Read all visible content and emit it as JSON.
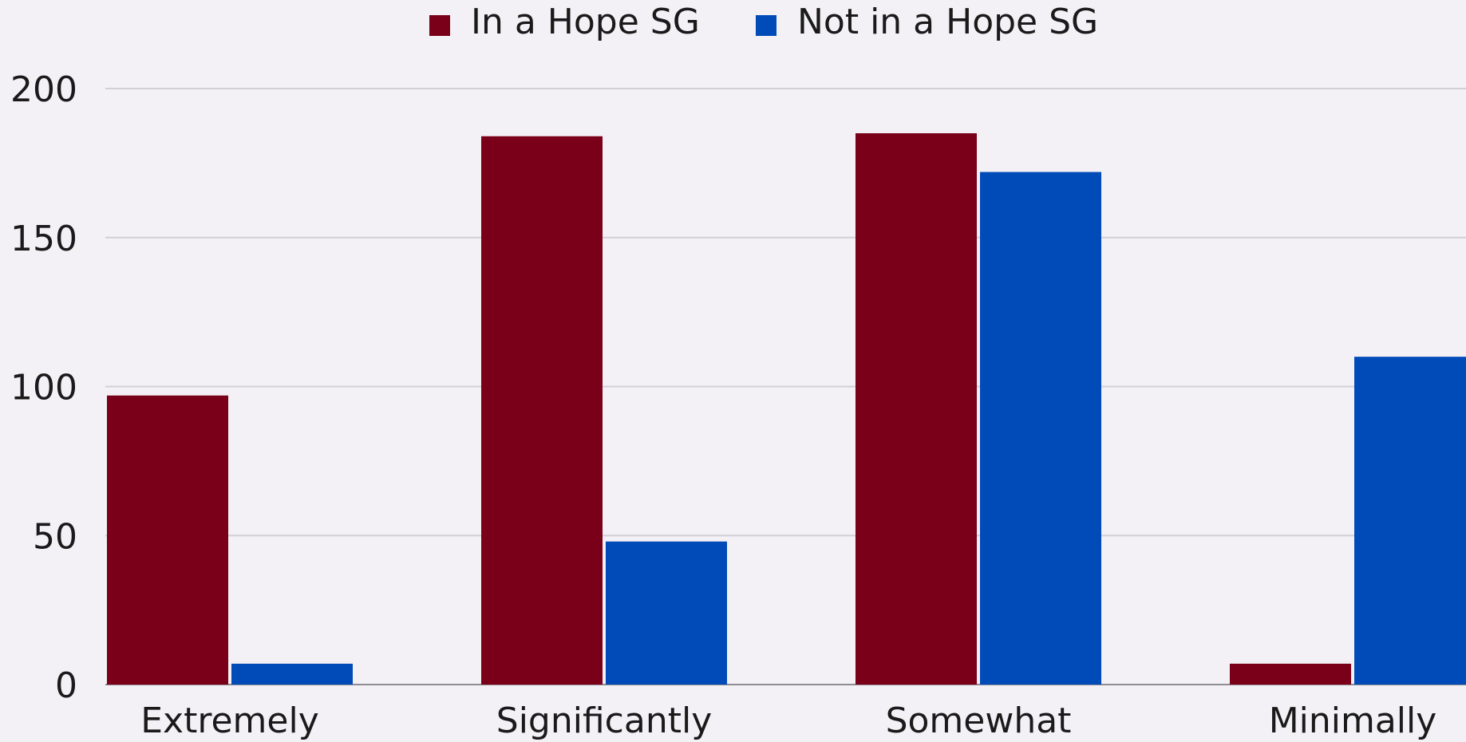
{
  "chart_data": {
    "type": "bar",
    "categories": [
      "Extremely",
      "Significantly",
      "Somewhat",
      "Minimally"
    ],
    "series": [
      {
        "name": "In a Hope SG",
        "values": [
          97,
          184,
          185,
          7
        ],
        "color": "#7a0019"
      },
      {
        "name": "Not in a Hope SG",
        "values": [
          7,
          48,
          172,
          110
        ],
        "color": "#004bb8"
      }
    ],
    "yticks": [
      "0",
      "50",
      "100",
      "150",
      "200"
    ],
    "ylim": [
      0,
      200
    ],
    "grid": true,
    "legend_position": "top-center"
  }
}
